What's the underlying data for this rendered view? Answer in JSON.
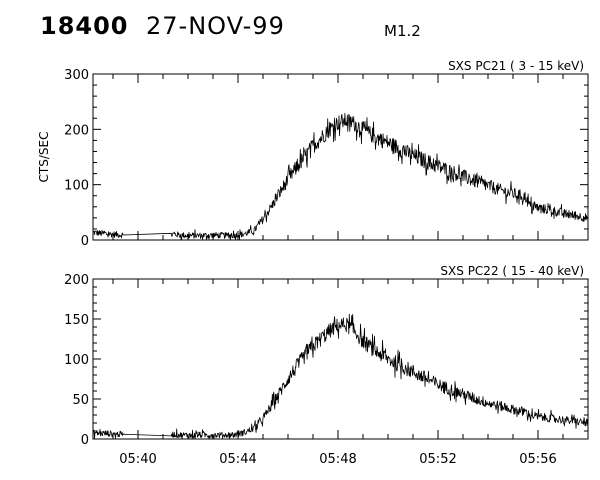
{
  "header": {
    "event_id": "18400",
    "date": "27-NOV-99",
    "goes_class": "M1.2"
  },
  "colors": {
    "ink": "#000000",
    "background": "#ffffff"
  },
  "chart_data": [
    {
      "type": "line",
      "title": "SXS PC21  (  3 - 15 keV)",
      "ylabel": "CTS/SEC",
      "xlabel": "",
      "xlim": [
        "05:38:12",
        "05:58:00"
      ],
      "ylim": [
        0,
        300
      ],
      "y_ticks": [
        0,
        100,
        200,
        300
      ],
      "x_ticks": [
        "05:40",
        "05:44",
        "05:48",
        "05:52",
        "05:56"
      ],
      "grid": false,
      "series": [
        {
          "x": [
            "05:38:12",
            "05:38:30",
            "05:38:48",
            "05:39:06",
            "05:39:24",
            "05:41:20",
            "05:41:40",
            "05:42:00",
            "05:42:30",
            "05:43:00",
            "05:43:30",
            "05:44:00",
            "05:44:20",
            "05:44:40",
            "05:45:00",
            "05:45:20",
            "05:45:40",
            "05:46:00",
            "05:46:20",
            "05:46:40",
            "05:47:00",
            "05:47:20",
            "05:47:40",
            "05:48:00",
            "05:48:20",
            "05:48:40",
            "05:49:00",
            "05:49:30",
            "05:50:00",
            "05:50:30",
            "05:51:00",
            "05:51:30",
            "05:52:00",
            "05:52:30",
            "05:53:00",
            "05:53:30",
            "05:54:00",
            "05:54:30",
            "05:55:00",
            "05:55:30",
            "05:55:40",
            "05:56:00",
            "05:56:30",
            "05:57:00",
            "05:57:30",
            "05:58:00"
          ],
          "y": [
            14,
            12,
            11,
            10,
            9,
            11,
            9,
            8,
            8,
            9,
            8,
            9,
            12,
            18,
            38,
            60,
            85,
            110,
            130,
            150,
            170,
            185,
            200,
            212,
            216,
            210,
            200,
            186,
            176,
            164,
            152,
            143,
            133,
            124,
            115,
            106,
            98,
            90,
            84,
            78,
            62,
            58,
            54,
            48,
            44,
            40
          ],
          "noise": 18
        }
      ]
    },
    {
      "type": "line",
      "title": "SXS PC22  ( 15 - 40 keV)",
      "ylabel": "",
      "xlabel": "",
      "xlim": [
        "05:38:12",
        "05:58:00"
      ],
      "ylim": [
        0,
        200
      ],
      "y_ticks": [
        0,
        50,
        100,
        150,
        200
      ],
      "x_ticks": [
        "05:40",
        "05:44",
        "05:48",
        "05:52",
        "05:56"
      ],
      "grid": false,
      "series": [
        {
          "x": [
            "05:38:12",
            "05:38:30",
            "05:38:48",
            "05:39:06",
            "05:39:24",
            "05:41:20",
            "05:41:40",
            "05:42:00",
            "05:42:30",
            "05:43:00",
            "05:43:30",
            "05:44:00",
            "05:44:20",
            "05:44:40",
            "05:45:00",
            "05:45:20",
            "05:45:40",
            "05:46:00",
            "05:46:20",
            "05:46:40",
            "05:47:00",
            "05:47:20",
            "05:47:40",
            "05:48:00",
            "05:48:20",
            "05:48:40",
            "05:49:00",
            "05:49:30",
            "05:50:00",
            "05:50:30",
            "05:51:00",
            "05:51:30",
            "05:52:00",
            "05:52:30",
            "05:53:00",
            "05:53:30",
            "05:54:00",
            "05:54:30",
            "05:55:00",
            "05:55:30",
            "05:55:40",
            "05:56:00",
            "05:56:30",
            "05:57:00",
            "05:57:30",
            "05:58:00"
          ],
          "y": [
            8,
            7,
            7,
            6,
            6,
            6,
            5,
            5,
            5,
            5,
            5,
            6,
            9,
            14,
            25,
            42,
            58,
            75,
            90,
            104,
            116,
            126,
            135,
            142,
            143,
            135,
            122,
            110,
            100,
            92,
            84,
            76,
            68,
            62,
            56,
            50,
            45,
            41,
            37,
            34,
            30,
            28,
            26,
            24,
            22,
            20
          ],
          "noise": 12
        }
      ]
    }
  ]
}
